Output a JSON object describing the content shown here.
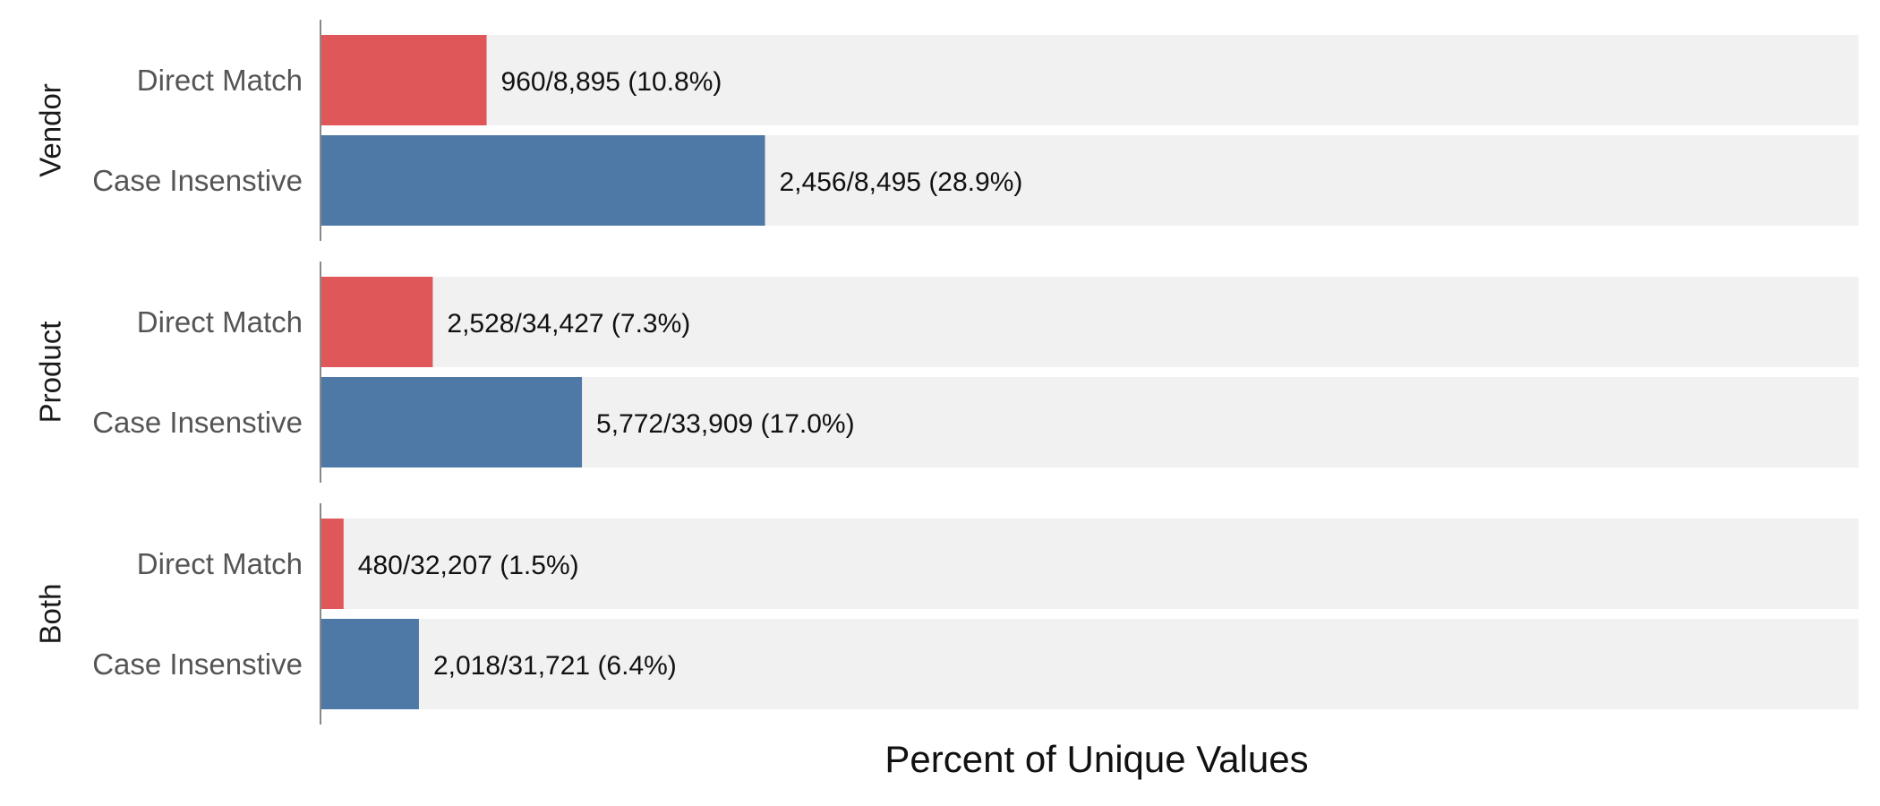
{
  "chart_data": {
    "type": "bar",
    "orientation": "horizontal",
    "title": "",
    "xlabel": "Percent of Unique Values",
    "ylabel": "",
    "xlim": [
      0,
      100
    ],
    "grid": false,
    "legend": "none",
    "colors": {
      "Direct Match": "#E05759",
      "Case Insenstive": "#4E79A7",
      "track": "#F1F1F1",
      "axis": "#888888"
    },
    "groups": [
      {
        "name": "Vendor",
        "bars": [
          {
            "category": "Direct Match",
            "value": 10.8,
            "label": "960/8,895 (10.8%)"
          },
          {
            "category": "Case Insenstive",
            "value": 28.9,
            "label": "2,456/8,495 (28.9%)"
          }
        ]
      },
      {
        "name": "Product",
        "bars": [
          {
            "category": "Direct Match",
            "value": 7.3,
            "label": "2,528/34,427 (7.3%)"
          },
          {
            "category": "Case Insenstive",
            "value": 17.0,
            "label": "5,772/33,909 (17.0%)"
          }
        ]
      },
      {
        "name": "Both",
        "bars": [
          {
            "category": "Direct Match",
            "value": 1.5,
            "label": "480/32,207 (1.5%)"
          },
          {
            "category": "Case Insenstive",
            "value": 6.4,
            "label": "2,018/31,721 (6.4%)"
          }
        ]
      }
    ]
  }
}
